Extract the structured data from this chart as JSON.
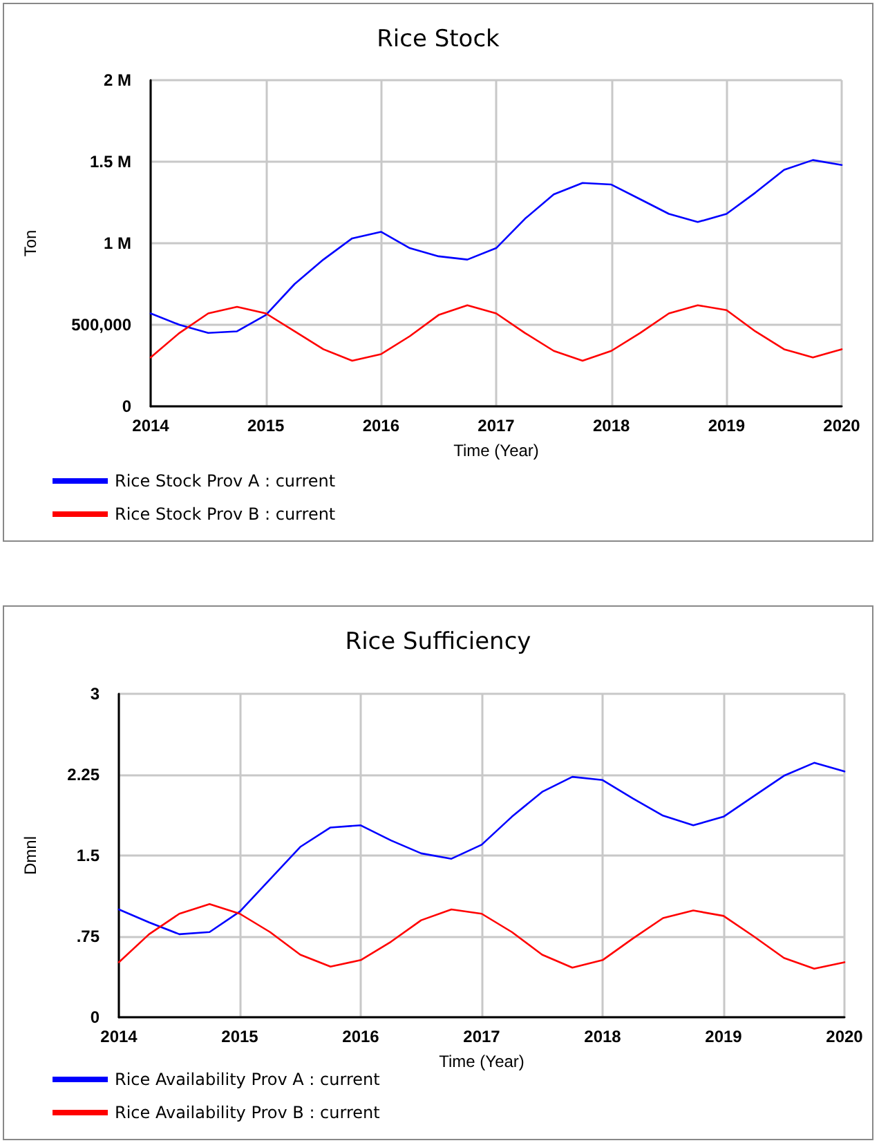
{
  "chart_data": [
    {
      "type": "line",
      "title": "Rice Stock",
      "xlabel": "Time (Year)",
      "ylabel": "Ton",
      "x": [
        2014,
        2014.25,
        2014.5,
        2014.75,
        2015,
        2015.25,
        2015.5,
        2015.75,
        2016,
        2016.25,
        2016.5,
        2016.75,
        2017,
        2017.25,
        2017.5,
        2017.75,
        2018,
        2018.25,
        2018.5,
        2018.75,
        2019,
        2019.25,
        2019.5,
        2019.75,
        2020
      ],
      "series": [
        {
          "name": "Rice Stock Prov A : current",
          "color": "#0000ff",
          "values": [
            570000,
            500000,
            450000,
            460000,
            560000,
            750000,
            900000,
            1030000,
            1070000,
            970000,
            920000,
            900000,
            970000,
            1150000,
            1300000,
            1370000,
            1360000,
            1270000,
            1180000,
            1130000,
            1180000,
            1310000,
            1450000,
            1510000,
            1480000
          ]
        },
        {
          "name": "Rice Stock Prov B : current",
          "color": "#ff0000",
          "values": [
            300000,
            450000,
            570000,
            610000,
            570000,
            460000,
            350000,
            280000,
            320000,
            430000,
            560000,
            620000,
            570000,
            450000,
            340000,
            280000,
            340000,
            450000,
            570000,
            620000,
            590000,
            460000,
            350000,
            300000,
            350000
          ]
        }
      ],
      "xlim": [
        2014,
        2020
      ],
      "xticks": [
        2014,
        2015,
        2016,
        2017,
        2018,
        2019,
        2020
      ],
      "ylim": [
        0,
        2000000
      ],
      "yticks": [
        0,
        {
          "value": 500000,
          "label": "500,000"
        },
        {
          "value": 1000000,
          "label": "1 M"
        },
        {
          "value": 1500000,
          "label": "1.5 M"
        },
        {
          "value": 2000000,
          "label": "2 M"
        }
      ],
      "grid": true,
      "legend": "bottom",
      "marker": "none",
      "line_style": "solid"
    },
    {
      "type": "line",
      "title": "Rice Sufficiency",
      "xlabel": "Time (Year)",
      "ylabel": "Dmnl",
      "x": [
        2014,
        2014.25,
        2014.5,
        2014.75,
        2015,
        2015.25,
        2015.5,
        2015.75,
        2016,
        2016.25,
        2016.5,
        2016.75,
        2017,
        2017.25,
        2017.5,
        2017.75,
        2018,
        2018.25,
        2018.5,
        2018.75,
        2019,
        2019.25,
        2019.5,
        2019.75,
        2020
      ],
      "series": [
        {
          "name": "Rice Availability Prov A : current",
          "color": "#0000ff",
          "values": [
            1.0,
            0.88,
            0.77,
            0.79,
            0.98,
            1.28,
            1.58,
            1.76,
            1.78,
            1.64,
            1.52,
            1.47,
            1.6,
            1.86,
            2.09,
            2.23,
            2.2,
            2.03,
            1.87,
            1.78,
            1.86,
            2.05,
            2.24,
            2.36,
            2.28
          ]
        },
        {
          "name": "Rice Availability Prov B : current",
          "color": "#ff0000",
          "values": [
            0.51,
            0.77,
            0.96,
            1.05,
            0.96,
            0.79,
            0.58,
            0.47,
            0.53,
            0.7,
            0.9,
            1.0,
            0.96,
            0.79,
            0.58,
            0.46,
            0.53,
            0.73,
            0.92,
            0.99,
            0.94,
            0.75,
            0.55,
            0.45,
            0.51
          ]
        }
      ],
      "xlim": [
        2014,
        2020
      ],
      "xticks": [
        2014,
        2015,
        2016,
        2017,
        2018,
        2019,
        2020
      ],
      "ylim": [
        0,
        3
      ],
      "yticks": [
        0,
        {
          "value": 0.75,
          "label": ".75"
        },
        1.5,
        2.25,
        3
      ],
      "grid": true,
      "legend": "bottom",
      "marker": "none",
      "line_style": "solid"
    }
  ]
}
